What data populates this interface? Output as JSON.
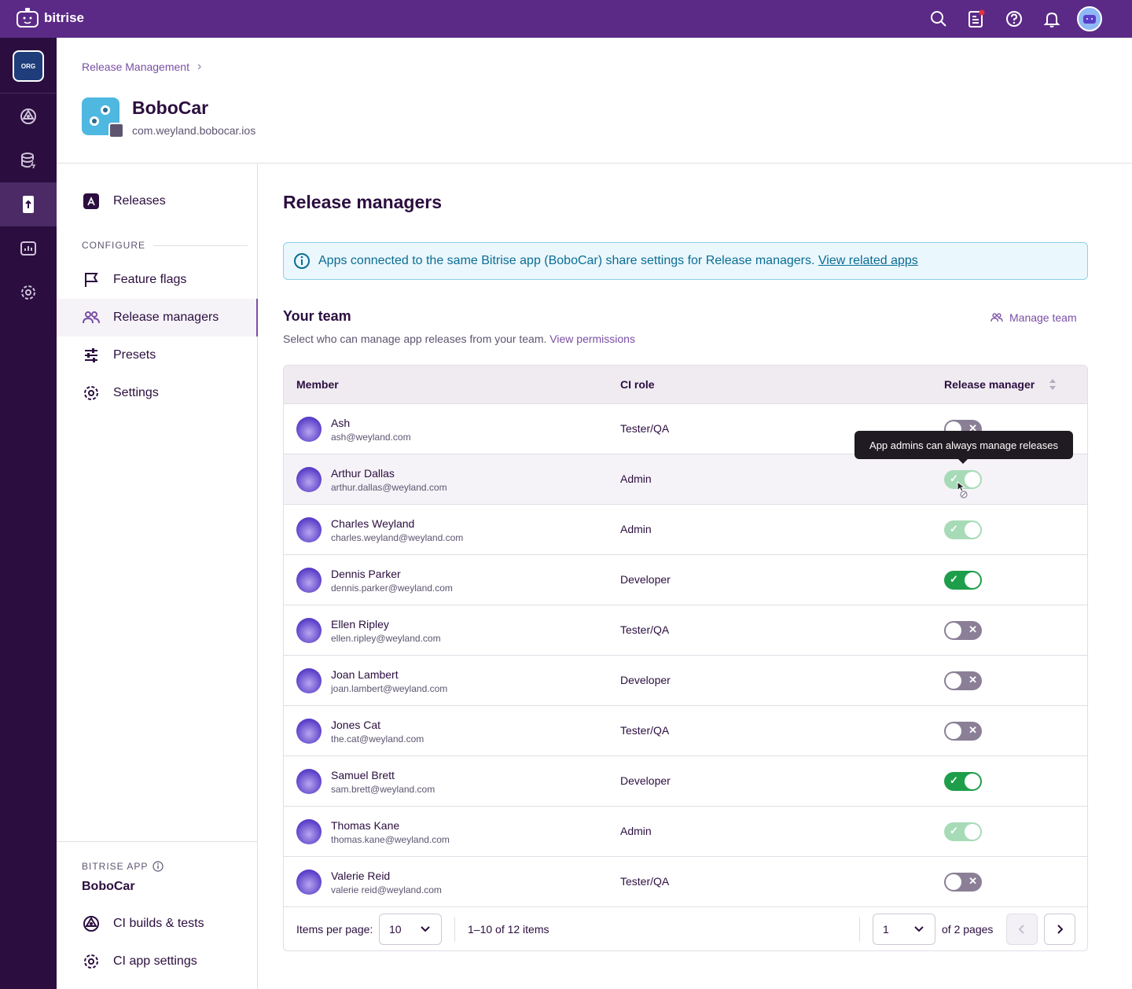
{
  "topbar": {
    "brand": "bitrise",
    "icons": [
      "search-icon",
      "changelog-icon",
      "help-icon",
      "bell-icon",
      "user-avatar"
    ]
  },
  "rail": {
    "org_badge": "ORG",
    "items": [
      "ci-icon",
      "database-icon",
      "release-icon",
      "insights-icon",
      "settings-icon"
    ],
    "active": "release-icon"
  },
  "header": {
    "breadcrumb": "Release Management",
    "app_name": "BoboCar",
    "bundle_id": "com.weyland.bobocar.ios"
  },
  "sidebar": {
    "releases": "Releases",
    "configure_label": "CONFIGURE",
    "feature_flags": "Feature flags",
    "release_managers": "Release managers",
    "presets": "Presets",
    "settings": "Settings",
    "bitrise_app_label": "BITRISE APP",
    "bitrise_app_name": "BoboCar",
    "ci_builds": "CI builds & tests",
    "ci_settings": "CI app settings"
  },
  "main": {
    "title": "Release managers",
    "notice_text": "Apps connected to the same Bitrise app (BoboCar) share settings for Release managers.",
    "notice_link": "View related apps",
    "team_title": "Your team",
    "team_sub": "Select who can manage app releases from your team.",
    "team_link": "View permissions",
    "manage_team": "Manage team"
  },
  "table": {
    "headers": [
      "Member",
      "CI role",
      "Release manager"
    ],
    "rows": [
      {
        "name": "Ash",
        "email": "ash@weyland.com",
        "role": "Tester/QA",
        "release_manager": "off"
      },
      {
        "name": "Arthur Dallas",
        "email": "arthur.dallas@weyland.com",
        "role": "Admin",
        "release_manager": "disabled-on"
      },
      {
        "name": "Charles Weyland",
        "email": "charles.weyland@weyland.com",
        "role": "Admin",
        "release_manager": "disabled-on"
      },
      {
        "name": "Dennis Parker",
        "email": "dennis.parker@weyland.com",
        "role": "Developer",
        "release_manager": "on"
      },
      {
        "name": "Ellen Ripley",
        "email": "ellen.ripley@weyland.com",
        "role": "Tester/QA",
        "release_manager": "off"
      },
      {
        "name": "Joan Lambert",
        "email": "joan.lambert@weyland.com",
        "role": "Developer",
        "release_manager": "off"
      },
      {
        "name": "Jones Cat",
        "email": "the.cat@weyland.com",
        "role": "Tester/QA",
        "release_manager": "off"
      },
      {
        "name": "Samuel Brett",
        "email": "sam.brett@weyland.com",
        "role": "Developer",
        "release_manager": "on"
      },
      {
        "name": "Thomas Kane",
        "email": "thomas.kane@weyland.com",
        "role": "Admin",
        "release_manager": "disabled-on"
      },
      {
        "name": "Valerie Reid",
        "email": "valerie reid@weyland.com",
        "role": "Tester/QA",
        "release_manager": "off"
      }
    ],
    "tooltip": "App admins can always manage releases",
    "footer": {
      "items_per_page_label": "Items per page:",
      "items_per_page": "10",
      "range": "1–10 of 12 items",
      "page": "1",
      "of_pages": "of 2 pages"
    }
  },
  "colors": {
    "topbar": "#5b2a86",
    "rail": "#2b0e3f",
    "accent": "#7a4fa5",
    "toggle_on": "#1e9e4a",
    "toggle_off": "#8a7f96"
  }
}
